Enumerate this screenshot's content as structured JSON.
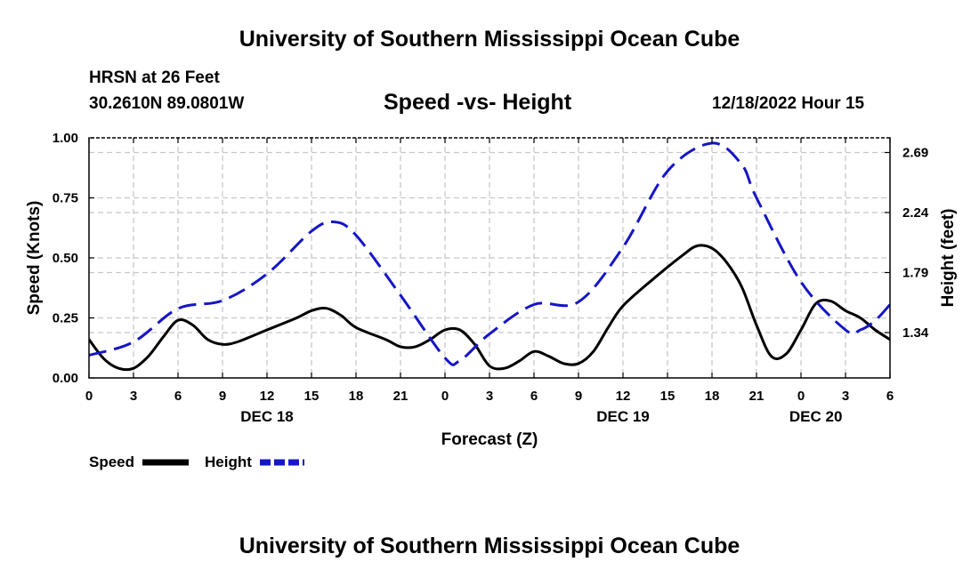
{
  "header": {
    "title": "University of Southern Mississippi Ocean Cube",
    "station": "HRSN at 26 Feet",
    "coords": "30.2610N  89.0801W",
    "datetime": "12/18/2022 Hour 15"
  },
  "footer": {
    "title": "University of Southern Mississippi Ocean Cube"
  },
  "chart_data": {
    "type": "line",
    "title": "Speed -vs- Height",
    "xlabel": "Forecast (Z)",
    "ylabel": "Speed (Knots)",
    "y2label": "Height (feet)",
    "xlim": [
      0,
      54
    ],
    "ylim": [
      0,
      1
    ],
    "y2lim": [
      1.0,
      2.8
    ],
    "x_ticks": [
      0,
      3,
      6,
      9,
      12,
      15,
      18,
      21,
      24,
      27,
      30,
      33,
      36,
      39,
      42,
      45,
      48,
      51,
      54
    ],
    "x_tick_labels": [
      "0",
      "3",
      "6",
      "9",
      "12",
      "15",
      "18",
      "21",
      "0",
      "3",
      "6",
      "9",
      "12",
      "15",
      "18",
      "21",
      "0",
      "3",
      "6"
    ],
    "y_ticks": [
      0,
      0.25,
      0.5,
      0.75,
      1.0
    ],
    "y_tick_labels": [
      "0.00",
      "0.25",
      "0.50",
      "0.75",
      "1.00"
    ],
    "y2_ticks": [
      1.34,
      1.79,
      2.24,
      2.69
    ],
    "y2_tick_labels": [
      "1.34",
      "1.79",
      "2.24",
      "2.69"
    ],
    "date_labels": [
      {
        "text": "DEC 18",
        "x": 12
      },
      {
        "text": "DEC 19",
        "x": 36
      },
      {
        "text": "DEC 20",
        "x": 49
      }
    ],
    "grid": true,
    "legend": {
      "position": "bottom-left"
    },
    "series": [
      {
        "name": "Speed",
        "axis": "left",
        "color": "#000000",
        "style": "solid",
        "x": [
          0,
          1,
          2,
          3,
          4,
          5,
          6,
          7,
          8,
          9,
          10,
          12,
          14,
          15,
          16,
          17,
          18,
          20,
          21,
          22,
          23,
          24,
          25,
          26,
          27,
          28,
          29,
          30,
          31,
          32,
          33,
          34,
          35,
          36,
          38,
          40,
          41,
          42,
          43,
          44,
          45,
          46,
          47,
          48,
          49,
          50,
          51,
          52,
          53,
          54
        ],
        "values": [
          0.16,
          0.08,
          0.04,
          0.04,
          0.09,
          0.17,
          0.24,
          0.22,
          0.16,
          0.14,
          0.15,
          0.2,
          0.25,
          0.28,
          0.29,
          0.26,
          0.21,
          0.16,
          0.13,
          0.13,
          0.16,
          0.2,
          0.2,
          0.14,
          0.05,
          0.04,
          0.07,
          0.11,
          0.09,
          0.06,
          0.06,
          0.11,
          0.21,
          0.3,
          0.41,
          0.51,
          0.55,
          0.54,
          0.48,
          0.38,
          0.22,
          0.09,
          0.1,
          0.2,
          0.31,
          0.32,
          0.28,
          0.25,
          0.2,
          0.16
        ]
      },
      {
        "name": "Height",
        "axis": "right",
        "color": "#1515c8",
        "style": "dashed",
        "x": [
          0,
          3,
          6,
          9,
          12,
          15,
          16.5,
          18,
          21,
          24,
          25,
          27,
          30,
          33,
          36,
          39,
          42,
          44,
          45,
          48,
          51,
          52,
          53,
          54
        ],
        "values": [
          1.17,
          1.27,
          1.52,
          1.58,
          1.78,
          2.1,
          2.17,
          2.07,
          1.62,
          1.15,
          1.13,
          1.33,
          1.55,
          1.57,
          1.98,
          2.55,
          2.76,
          2.6,
          2.35,
          1.72,
          1.36,
          1.36,
          1.43,
          1.55
        ]
      }
    ]
  }
}
